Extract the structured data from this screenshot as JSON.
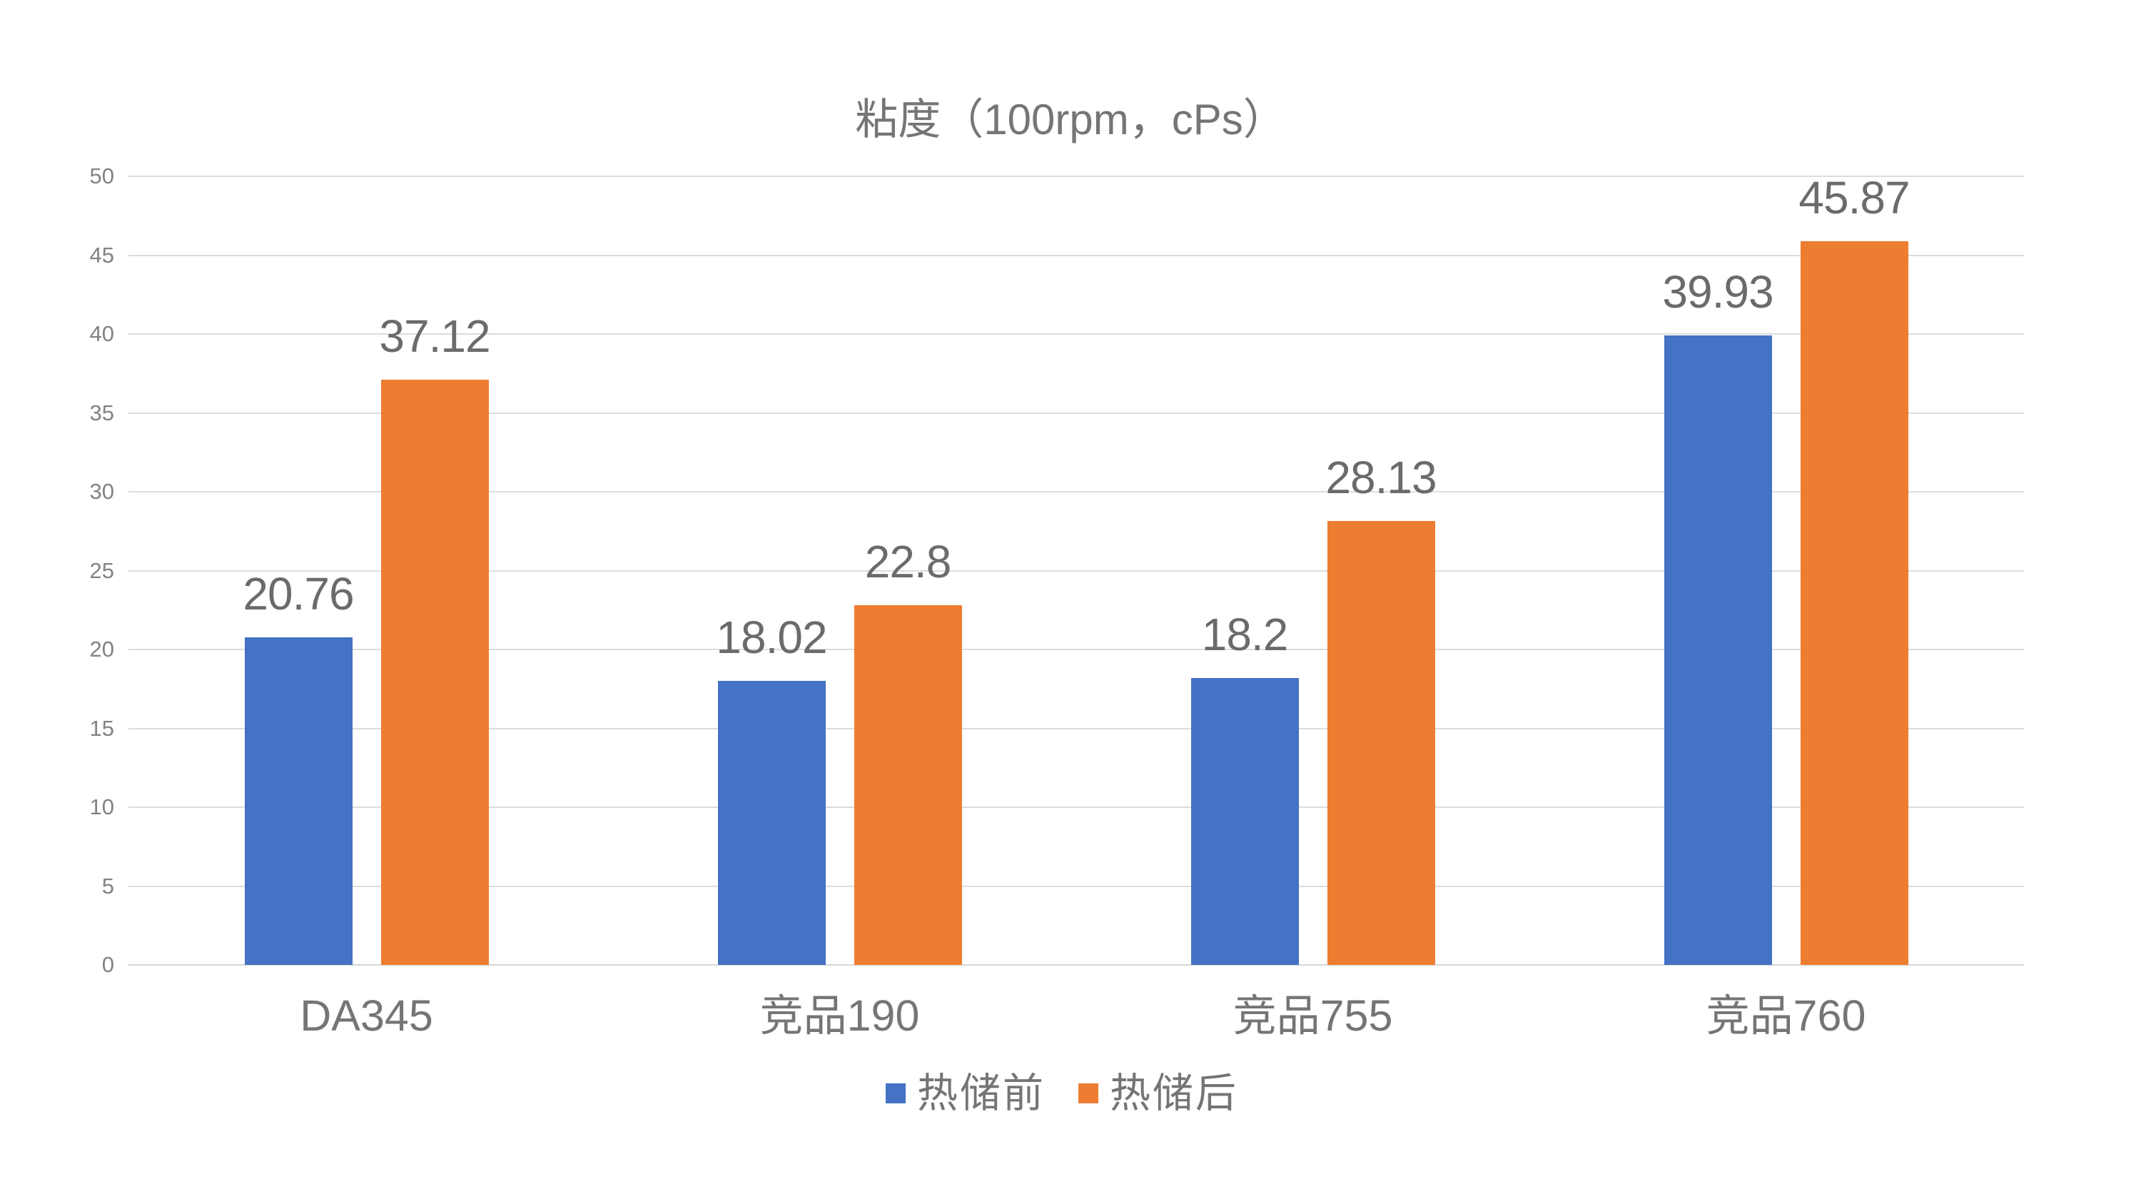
{
  "chart_data": {
    "type": "bar",
    "title": "粘度（100rpm，cPs）",
    "categories": [
      "DA345",
      "竞品190",
      "竞品755",
      "竞品760"
    ],
    "series": [
      {
        "name": "热储前",
        "color": "#4472C4",
        "values": [
          20.76,
          18.02,
          18.2,
          39.93
        ]
      },
      {
        "name": "热储后",
        "color": "#ED7D31",
        "values": [
          37.12,
          22.8,
          28.13,
          45.87
        ]
      }
    ],
    "ylim": [
      0,
      50
    ],
    "ytick_step": 5,
    "grid": true,
    "legend_position": "bottom",
    "data_labels": true
  }
}
